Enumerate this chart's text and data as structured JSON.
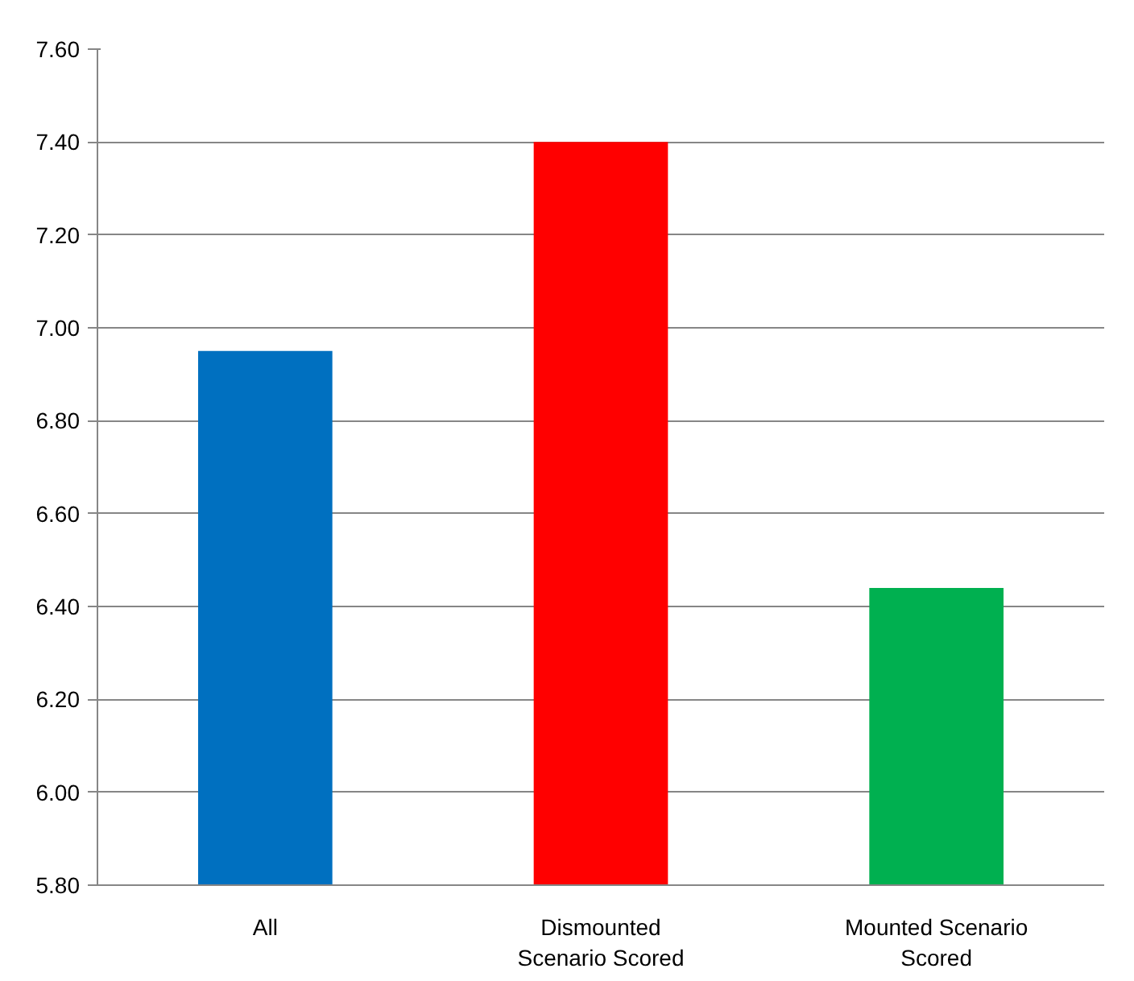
{
  "chart_data": {
    "type": "bar",
    "categories": [
      "All",
      "Dismounted Scenario Scored",
      "Mounted Scenario Scored"
    ],
    "values": [
      6.95,
      7.4,
      6.44
    ],
    "colors": [
      "#0070c0",
      "#ff0000",
      "#00b050"
    ],
    "ylim": [
      5.8,
      7.6
    ],
    "yticks": [
      {
        "value": 5.8,
        "label": "5.80"
      },
      {
        "value": 6.0,
        "label": "6.00"
      },
      {
        "value": 6.2,
        "label": "6.20"
      },
      {
        "value": 6.4,
        "label": "6.40"
      },
      {
        "value": 6.6,
        "label": "6.60"
      },
      {
        "value": 6.8,
        "label": "6.80"
      },
      {
        "value": 7.0,
        "label": "7.00"
      },
      {
        "value": 7.2,
        "label": "7.20"
      },
      {
        "value": 7.4,
        "label": "7.40"
      },
      {
        "value": 7.6,
        "label": "7.60"
      }
    ],
    "grid": "y"
  }
}
